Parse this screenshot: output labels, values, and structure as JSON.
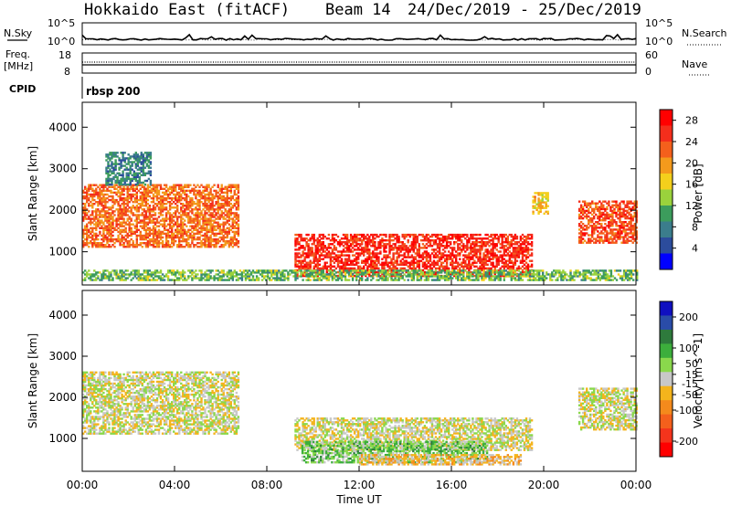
{
  "header": {
    "title": "Hokkaido East (fitACF)",
    "beam": "Beam 14",
    "date_range": "24/Dec/2019 - 25/Dec/2019"
  },
  "aux_panels": {
    "nsky_label": "N.Sky",
    "nsky_ticks": [
      "10^5",
      "10^0"
    ],
    "nsearch_label": "N.Search",
    "nsearch_ticks": [
      "10^5",
      "10^0"
    ],
    "freq_label": "Freq.",
    "freq_unit": "[MHz]",
    "freq_ticks": [
      "18",
      "8"
    ],
    "nave_label": "Nave",
    "nave_ticks": [
      "60",
      "0"
    ],
    "cpid_label": "CPID",
    "cpid_value": "rbsp 200"
  },
  "colors": {
    "power_scale": [
      "#0000ff",
      "#2c4c9c",
      "#3b7d8c",
      "#3c9c5c",
      "#9ad23c",
      "#f4d01c",
      "#f49a1c",
      "#f4601c",
      "#f42e1c",
      "#ff0000"
    ],
    "velocity_scale": [
      "#1010c0",
      "#2a4ca8",
      "#2e7a3c",
      "#3cae3c",
      "#8ad84c",
      "#c8c8c8",
      "#f4b41c",
      "#f48a1c",
      "#f4601c",
      "#f4341c",
      "#ff0000"
    ],
    "ground_scatter": "#c8c8c8"
  },
  "chart_data": [
    {
      "type": "heatmap",
      "panel": "power",
      "xlabel": "Time UT",
      "ylabel": "Slant Range [km]",
      "x_ticks": [
        "00:00",
        "04:00",
        "08:00",
        "12:00",
        "16:00",
        "20:00",
        "00:00"
      ],
      "y_ticks": [
        1000,
        2000,
        3000,
        4000
      ],
      "ylim": [
        200,
        4600
      ],
      "xlim_hours": [
        0,
        24
      ],
      "colorbar_label": "Power [dB]",
      "colorbar_ticks": [
        4,
        8,
        12,
        16,
        20,
        24,
        28
      ],
      "colorbar_range": [
        0,
        30
      ],
      "regions": [
        {
          "t0": 0.0,
          "t1": 6.8,
          "r0": 1100,
          "r1": 2600,
          "power": 22
        },
        {
          "t0": 1.0,
          "t1": 3.0,
          "r0": 2600,
          "r1": 3400,
          "power": 8
        },
        {
          "t0": 9.2,
          "t1": 19.5,
          "r0": 400,
          "r1": 1400,
          "power": 26
        },
        {
          "t0": 19.5,
          "t1": 20.2,
          "r0": 1900,
          "r1": 2400,
          "power": 18
        },
        {
          "t0": 21.5,
          "t1": 24.0,
          "r0": 1200,
          "r1": 2200,
          "power": 24
        },
        {
          "t0": 0.0,
          "t1": 24.0,
          "r0": 300,
          "r1": 550,
          "power": 12
        }
      ]
    },
    {
      "type": "heatmap",
      "panel": "velocity",
      "xlabel": "Time UT",
      "ylabel": "Slant Range [km]",
      "x_ticks": [
        "00:00",
        "04:00",
        "08:00",
        "12:00",
        "16:00",
        "20:00",
        "00:00"
      ],
      "y_ticks": [
        1000,
        2000,
        3000,
        4000
      ],
      "ylim": [
        200,
        4600
      ],
      "xlim_hours": [
        0,
        24
      ],
      "colorbar_label": "Velocity [m s^-1]",
      "colorbar_ticks": [
        200,
        100,
        50,
        15,
        -15,
        -50,
        -100,
        -200
      ],
      "colorbar_range": [
        -250,
        250
      ],
      "regions": [
        {
          "t0": 0.0,
          "t1": 6.8,
          "r0": 1100,
          "r1": 2600,
          "velocity": 0
        },
        {
          "t0": 9.2,
          "t1": 19.5,
          "r0": 700,
          "r1": 1500,
          "velocity": 0
        },
        {
          "t0": 9.5,
          "t1": 17.5,
          "r0": 400,
          "r1": 900,
          "velocity": 60
        },
        {
          "t0": 12.0,
          "t1": 19.0,
          "r0": 350,
          "r1": 600,
          "velocity": -40
        },
        {
          "t0": 21.5,
          "t1": 24.0,
          "r0": 1200,
          "r1": 2200,
          "velocity": 0
        }
      ]
    }
  ]
}
